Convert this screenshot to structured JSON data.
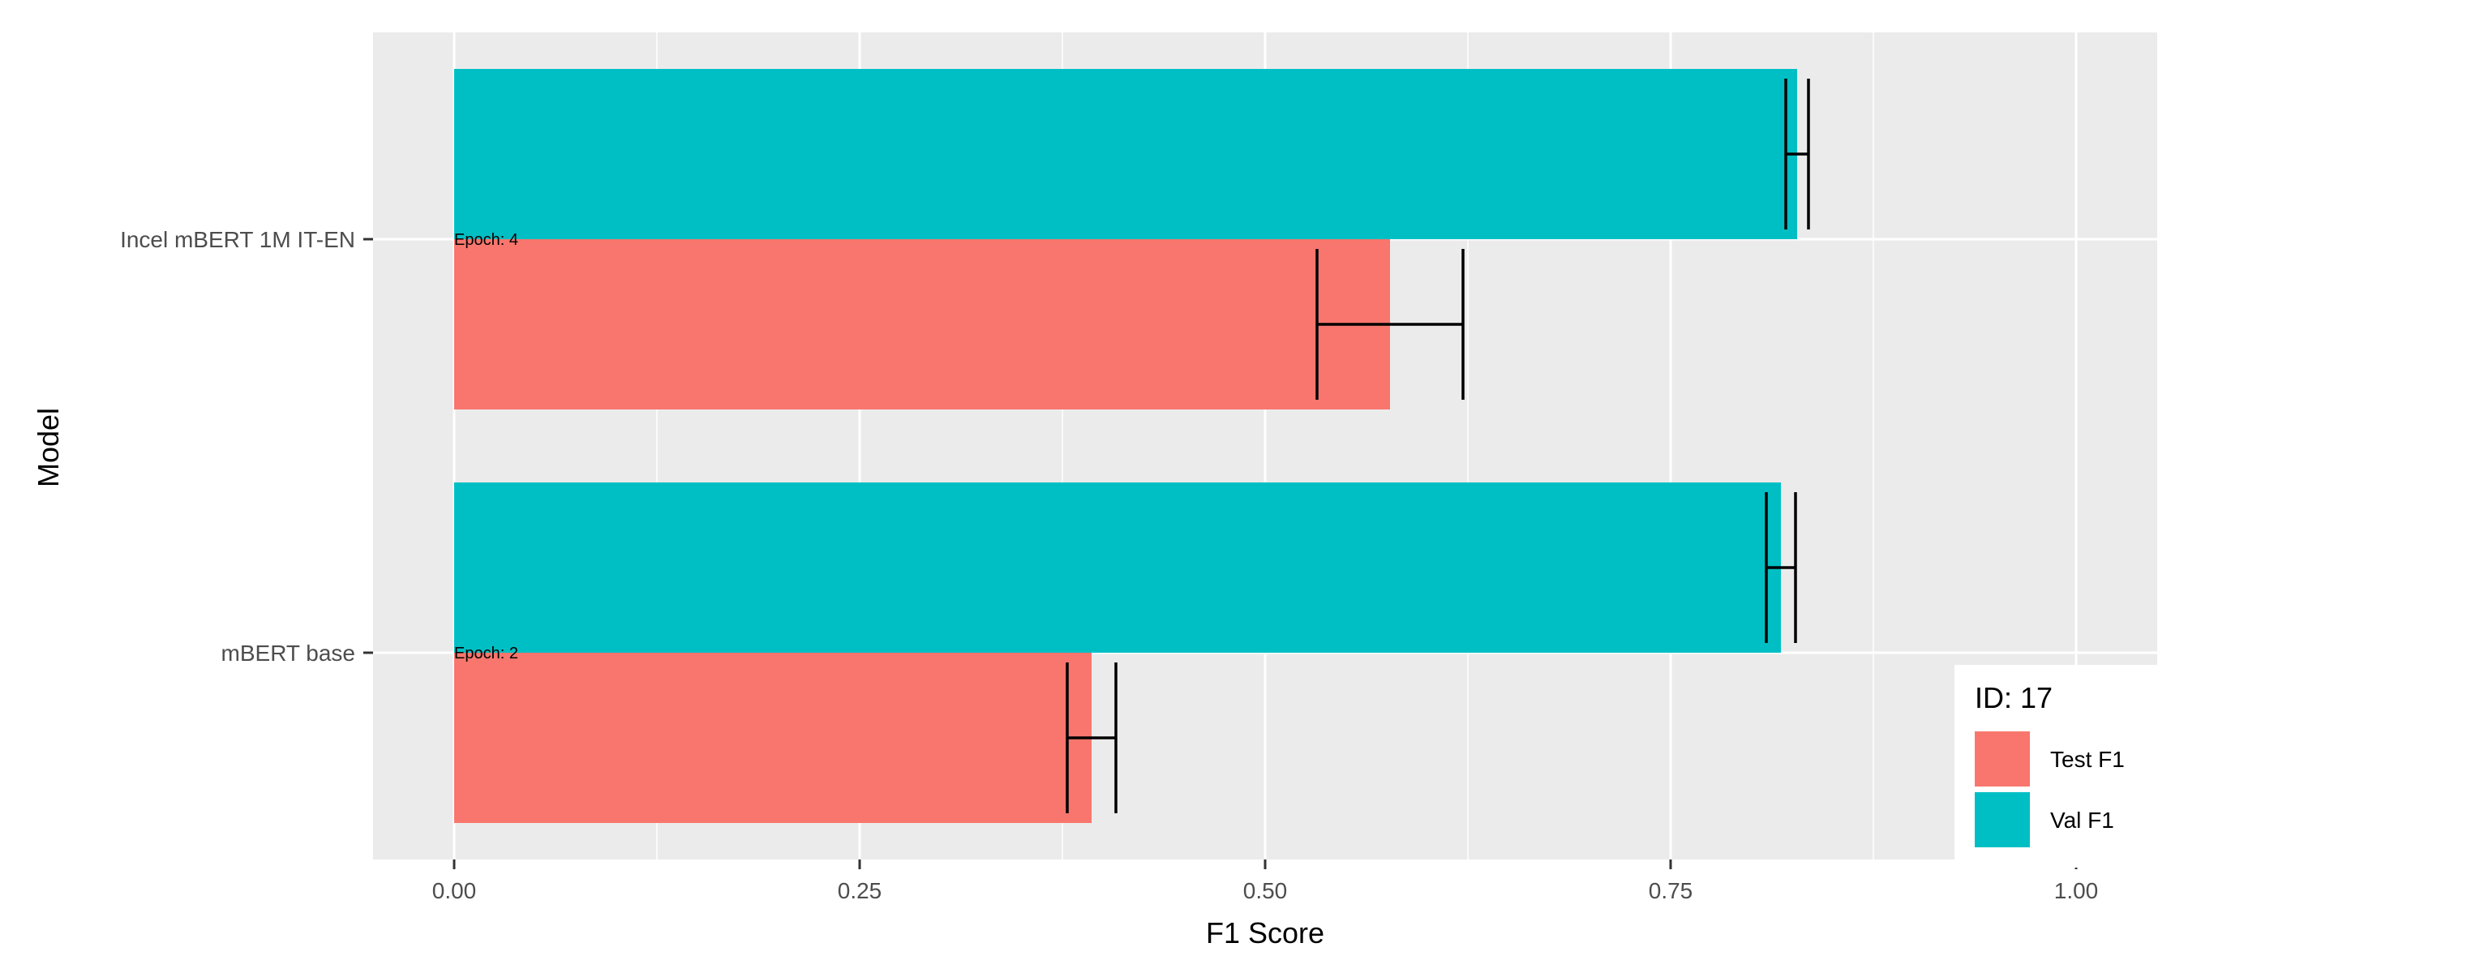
{
  "chart_data": {
    "type": "bar",
    "orientation": "horizontal",
    "categories": [
      "mBERT base",
      "Incel mBERT 1M IT-EN"
    ],
    "series": [
      {
        "name": "Test F1",
        "color": "#F8766D",
        "values": [
          0.393,
          0.577
        ],
        "error": [
          [
            0.378,
            0.408
          ],
          [
            0.532,
            0.622
          ]
        ]
      },
      {
        "name": "Val F1",
        "color": "#00BFC4",
        "values": [
          0.818,
          0.828
        ],
        "error": [
          [
            0.809,
            0.827
          ],
          [
            0.821,
            0.835
          ]
        ]
      }
    ],
    "annotations": [
      {
        "category": "mBERT base",
        "text": "Epoch: 2"
      },
      {
        "category": "Incel mBERT 1M IT-EN",
        "text": "Epoch: 4"
      }
    ],
    "xlabel": "F1 Score",
    "ylabel": "Model",
    "xlim": [
      -0.05,
      1.05
    ],
    "xticks": [
      0.0,
      0.25,
      0.5,
      0.75,
      1.0
    ],
    "xtick_labels": [
      "0.00",
      "0.25",
      "0.50",
      "0.75",
      "1.00"
    ],
    "grid": true,
    "legend": {
      "title": "ID:  17",
      "position": "bottom-right"
    },
    "colors": {
      "panel": "#EBEBEB",
      "grid": "#FFFFFF",
      "error_bar": "#000000"
    }
  }
}
